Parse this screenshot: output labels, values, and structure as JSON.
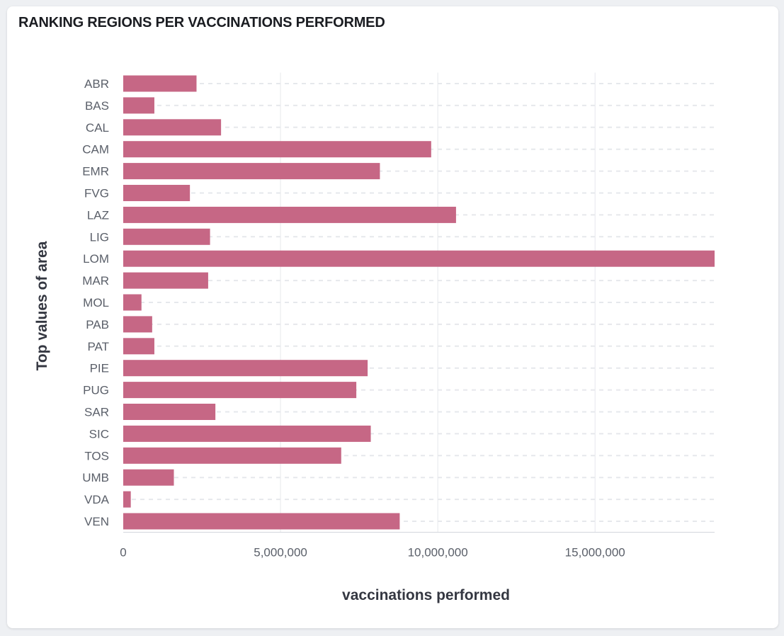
{
  "panel": {
    "title": "RANKING REGIONS PER VACCINATIONS PERFORMED"
  },
  "colors": {
    "bar": "#c66785",
    "grid": "#e6e8ec",
    "axis": "#d3d6dc"
  },
  "chart_data": {
    "type": "bar",
    "orientation": "horizontal",
    "xlabel": "vaccinations performed",
    "ylabel": "Top values of area",
    "xlim": [
      0,
      18800000
    ],
    "xticks": [
      0,
      5000000,
      10000000,
      15000000
    ],
    "xtick_labels": [
      "0",
      "5,000,000",
      "10,000,000",
      "15,000,000"
    ],
    "grid": true,
    "categories": [
      "ABR",
      "BAS",
      "CAL",
      "CAM",
      "EMR",
      "FVG",
      "LAZ",
      "LIG",
      "LOM",
      "MAR",
      "MOL",
      "PAB",
      "PAT",
      "PIE",
      "PUG",
      "SAR",
      "SIC",
      "TOS",
      "UMB",
      "VDA",
      "VEN"
    ],
    "values": [
      2330000,
      990000,
      3110000,
      9790000,
      8160000,
      2120000,
      10580000,
      2760000,
      18800000,
      2700000,
      580000,
      920000,
      990000,
      7770000,
      7410000,
      2930000,
      7870000,
      6930000,
      1610000,
      240000,
      8790000
    ]
  }
}
